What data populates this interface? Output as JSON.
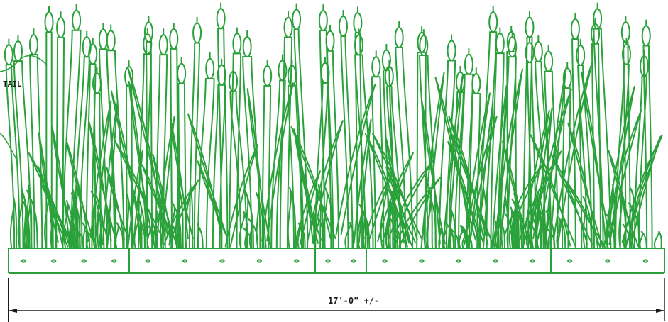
{
  "drawing": {
    "callout_label": "TAIL",
    "dimension_label": "17'-0\" +/-",
    "colors": {
      "stroke": "#2aa13a",
      "line": "#1a1a1a",
      "background": "#ffffff"
    }
  }
}
